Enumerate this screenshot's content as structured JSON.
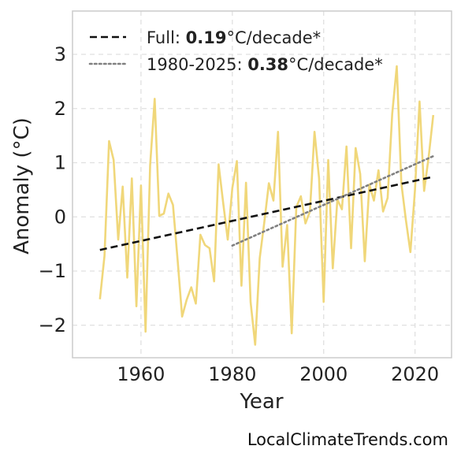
{
  "chart_data": {
    "type": "line",
    "xlabel": "Year",
    "ylabel": "Anomaly (°C)",
    "xlim": [
      1945,
      2028
    ],
    "ylim": [
      -2.6,
      3.8
    ],
    "xticks": [
      1960,
      1980,
      2000,
      2020
    ],
    "yticks": [
      -2,
      -1,
      0,
      1,
      2,
      3
    ],
    "ytick_labels": [
      "−2",
      "−1",
      "0",
      "1",
      "2",
      "3"
    ],
    "grid": true,
    "legend_position": "top-left",
    "series": [
      {
        "style": "solid",
        "color": "#f0d77a",
        "x": [
          1951,
          1952,
          1953,
          1954,
          1955,
          1956,
          1957,
          1958,
          1959,
          1960,
          1961,
          1962,
          1963,
          1964,
          1965,
          1966,
          1967,
          1968,
          1969,
          1970,
          1971,
          1972,
          1973,
          1974,
          1975,
          1976,
          1977,
          1978,
          1979,
          1980,
          1981,
          1982,
          1983,
          1984,
          1985,
          1986,
          1987,
          1988,
          1989,
          1990,
          1991,
          1992,
          1993,
          1994,
          1995,
          1996,
          1997,
          1998,
          1999,
          2000,
          2001,
          2002,
          2003,
          2004,
          2005,
          2006,
          2007,
          2008,
          2009,
          2010,
          2011,
          2012,
          2013,
          2014,
          2015,
          2016,
          2017,
          2018,
          2019,
          2020,
          2021,
          2022,
          2023,
          2024
        ],
        "y": [
          -1.52,
          -0.72,
          1.4,
          1.05,
          -0.42,
          0.56,
          -1.12,
          0.71,
          -1.65,
          0.58,
          -2.12,
          0.95,
          2.18,
          0.02,
          0.06,
          0.43,
          0.22,
          -0.78,
          -1.84,
          -1.53,
          -1.3,
          -1.6,
          -0.33,
          -0.52,
          -0.58,
          -1.19,
          0.97,
          0.26,
          -0.42,
          0.53,
          1.03,
          -1.27,
          0.63,
          -1.57,
          -2.36,
          -0.76,
          -0.1,
          0.62,
          0.3,
          1.57,
          -0.92,
          -0.15,
          -2.15,
          0.18,
          0.38,
          -0.12,
          0.1,
          1.57,
          0.71,
          -1.57,
          1.05,
          -0.95,
          0.32,
          0.14,
          1.3,
          -0.58,
          1.27,
          0.79,
          -0.82,
          0.6,
          0.3,
          0.86,
          0.1,
          0.35,
          1.9,
          2.78,
          0.62,
          -0.05,
          -0.65,
          0.5,
          2.13,
          0.48,
          1.11,
          1.88
        ]
      },
      {
        "name": "Full",
        "style": "dashed",
        "color": "#111111",
        "x": [
          1951,
          2024
        ],
        "y": [
          -0.61,
          0.74
        ]
      },
      {
        "name": "1980-2025",
        "style": "dotted",
        "color": "#808080",
        "x": [
          1980,
          2024
        ],
        "y": [
          -0.53,
          1.12
        ]
      }
    ],
    "legend": [
      {
        "prefix": "Full: ",
        "value": "0.19",
        "suffix": "°C/decade*",
        "style": "dashed",
        "color": "#111111"
      },
      {
        "prefix": "1980-2025: ",
        "value": "0.38",
        "suffix": "°C/decade*",
        "style": "dotted",
        "color": "#808080"
      }
    ]
  },
  "credit": "LocalClimateTrends.com"
}
